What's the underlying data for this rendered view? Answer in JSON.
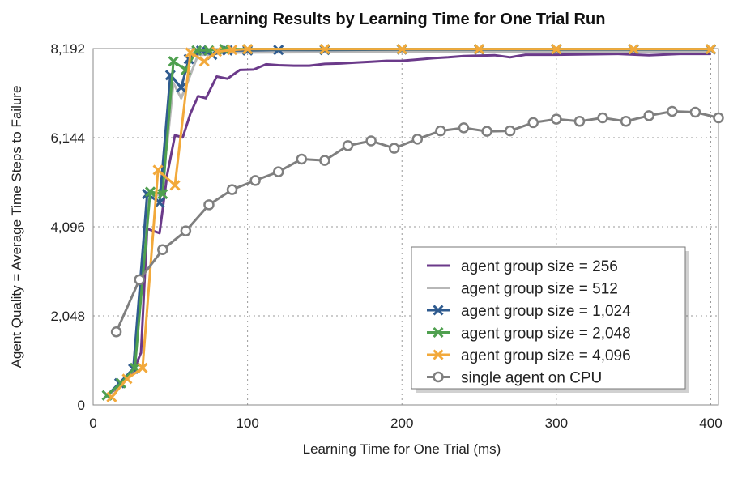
{
  "chart_data": {
    "type": "line",
    "title": "Learning Results by Learning Time for One Trial Run",
    "xlabel": "Learning Time for One Trial (ms)",
    "ylabel": "Agent Quality = Average Time Steps to Failure",
    "xlim": [
      0,
      405
    ],
    "ylim": [
      0,
      8192
    ],
    "xticks": [
      0,
      100,
      200,
      300,
      400
    ],
    "xtick_labels": [
      "0",
      "100",
      "200",
      "300",
      "400"
    ],
    "yticks": [
      0,
      2048,
      4096,
      6144,
      8192
    ],
    "ytick_labels": [
      "0",
      "2,048",
      "4,096",
      "6,144",
      "8,192"
    ],
    "grid": true,
    "legend_position": "lower-right",
    "series": [
      {
        "name": "agent group size = 256",
        "color": "#6b3a8a",
        "marker": "none",
        "points": [
          [
            9,
            220
          ],
          [
            17,
            420
          ],
          [
            26,
            780
          ],
          [
            31,
            1200
          ],
          [
            35,
            4050
          ],
          [
            43,
            3950
          ],
          [
            48,
            5300
          ],
          [
            53,
            6200
          ],
          [
            58,
            6150
          ],
          [
            63,
            6700
          ],
          [
            68,
            7100
          ],
          [
            73,
            7050
          ],
          [
            80,
            7550
          ],
          [
            87,
            7500
          ],
          [
            95,
            7700
          ],
          [
            104,
            7710
          ],
          [
            112,
            7830
          ],
          [
            120,
            7810
          ],
          [
            130,
            7800
          ],
          [
            140,
            7800
          ],
          [
            150,
            7840
          ],
          [
            160,
            7850
          ],
          [
            170,
            7870
          ],
          [
            180,
            7890
          ],
          [
            190,
            7910
          ],
          [
            200,
            7910
          ],
          [
            210,
            7940
          ],
          [
            220,
            7970
          ],
          [
            230,
            7990
          ],
          [
            240,
            8020
          ],
          [
            260,
            8040
          ],
          [
            270,
            7990
          ],
          [
            280,
            8050
          ],
          [
            300,
            8050
          ],
          [
            320,
            8060
          ],
          [
            340,
            8070
          ],
          [
            360,
            8040
          ],
          [
            380,
            8070
          ],
          [
            400,
            8070
          ]
        ]
      },
      {
        "name": "agent group size = 512",
        "color": "#b7b7b7",
        "marker": "none",
        "points": [
          [
            9,
            220
          ],
          [
            17,
            450
          ],
          [
            26,
            800
          ],
          [
            35,
            4700
          ],
          [
            43,
            4850
          ],
          [
            48,
            6000
          ],
          [
            52,
            7400
          ],
          [
            57,
            7050
          ],
          [
            62,
            7500
          ],
          [
            68,
            8050
          ],
          [
            75,
            8050
          ],
          [
            85,
            8100
          ],
          [
            100,
            8100
          ],
          [
            150,
            8110
          ],
          [
            200,
            8120
          ],
          [
            300,
            8120
          ],
          [
            400,
            8120
          ]
        ]
      },
      {
        "name": "agent group size = 1,024",
        "color": "#2f5b8f",
        "marker": "x",
        "points": [
          [
            9,
            220
          ],
          [
            17,
            500
          ],
          [
            26,
            830
          ],
          [
            35,
            4850
          ],
          [
            43,
            4650
          ],
          [
            50,
            7580
          ],
          [
            57,
            7300
          ],
          [
            62,
            7950
          ],
          [
            70,
            8150
          ],
          [
            77,
            8050
          ],
          [
            87,
            8150
          ],
          [
            100,
            8150
          ],
          [
            120,
            8160
          ],
          [
            150,
            8160
          ],
          [
            200,
            8170
          ],
          [
            250,
            8170
          ],
          [
            300,
            8170
          ],
          [
            350,
            8170
          ],
          [
            400,
            8170
          ]
        ]
      },
      {
        "name": "agent group size = 2,048",
        "color": "#4fa04f",
        "marker": "x",
        "points": [
          [
            9,
            220
          ],
          [
            18,
            500
          ],
          [
            27,
            850
          ],
          [
            37,
            4900
          ],
          [
            45,
            4850
          ],
          [
            52,
            7900
          ],
          [
            60,
            7700
          ],
          [
            67,
            8150
          ],
          [
            75,
            8150
          ],
          [
            85,
            8180
          ],
          [
            100,
            8180
          ],
          [
            150,
            8180
          ],
          [
            200,
            8180
          ],
          [
            250,
            8180
          ],
          [
            300,
            8180
          ],
          [
            350,
            8180
          ],
          [
            400,
            8180
          ]
        ]
      },
      {
        "name": "agent group size = 4,096",
        "color": "#f2a93b",
        "marker": "x",
        "points": [
          [
            12,
            180
          ],
          [
            22,
            600
          ],
          [
            32,
            850
          ],
          [
            42,
            5400
          ],
          [
            53,
            5050
          ],
          [
            63,
            8100
          ],
          [
            72,
            7900
          ],
          [
            80,
            8120
          ],
          [
            90,
            8160
          ],
          [
            100,
            8180
          ],
          [
            150,
            8180
          ],
          [
            200,
            8180
          ],
          [
            250,
            8180
          ],
          [
            300,
            8180
          ],
          [
            350,
            8180
          ],
          [
            400,
            8180
          ]
        ]
      },
      {
        "name": "single agent on CPU",
        "color": "#7f7f7f",
        "marker": "o",
        "points": [
          [
            15,
            1680
          ],
          [
            30,
            2880
          ],
          [
            45,
            3570
          ],
          [
            60,
            4000
          ],
          [
            75,
            4600
          ],
          [
            90,
            4950
          ],
          [
            105,
            5160
          ],
          [
            120,
            5360
          ],
          [
            135,
            5650
          ],
          [
            150,
            5620
          ],
          [
            165,
            5960
          ],
          [
            180,
            6070
          ],
          [
            195,
            5900
          ],
          [
            210,
            6110
          ],
          [
            225,
            6300
          ],
          [
            240,
            6370
          ],
          [
            255,
            6290
          ],
          [
            270,
            6300
          ],
          [
            285,
            6490
          ],
          [
            300,
            6570
          ],
          [
            315,
            6520
          ],
          [
            330,
            6600
          ],
          [
            345,
            6520
          ],
          [
            360,
            6650
          ],
          [
            375,
            6750
          ],
          [
            390,
            6730
          ],
          [
            405,
            6600
          ]
        ]
      }
    ]
  }
}
